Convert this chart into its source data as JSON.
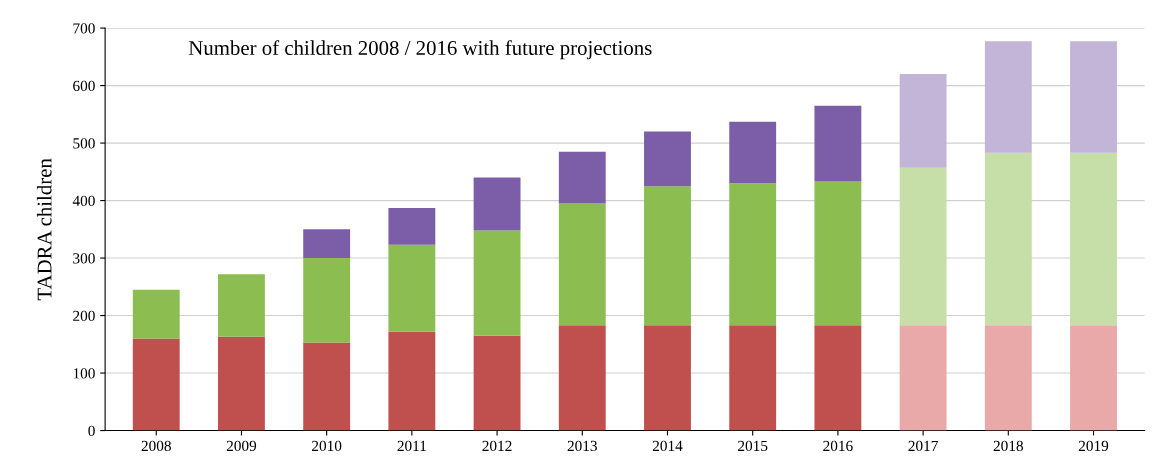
{
  "chart_data": {
    "type": "bar",
    "title": "Number of children 2008 / 2016 with future projections",
    "ylabel": "TADRA children",
    "categories": [
      "2008",
      "2009",
      "2010",
      "2011",
      "2012",
      "2013",
      "2014",
      "2015",
      "2016",
      "2017",
      "2018",
      "2019"
    ],
    "stacked": true,
    "series": [
      {
        "colors": [
          "#c0504d",
          "#c0504d",
          "#c0504d",
          "#c0504d",
          "#c0504d",
          "#c0504d",
          "#c0504d",
          "#c0504d",
          "#c0504d",
          "#e8a9a8",
          "#e8a9a8",
          "#e8a9a8"
        ],
        "values": [
          160,
          163,
          153,
          172,
          165,
          183,
          183,
          183,
          183,
          183,
          183,
          183
        ]
      },
      {
        "colors": [
          "#8cbd50",
          "#8cbd50",
          "#8cbd50",
          "#8cbd50",
          "#8cbd50",
          "#8cbd50",
          "#8cbd50",
          "#8cbd50",
          "#8cbd50",
          "#c6dea8",
          "#c6dea8",
          "#c6dea8"
        ],
        "values": [
          85,
          109,
          147,
          151,
          183,
          212,
          242,
          247,
          250,
          274,
          300,
          300
        ]
      },
      {
        "colors": [
          "#7b5ea7",
          "#7b5ea7",
          "#7b5ea7",
          "#7b5ea7",
          "#7b5ea7",
          "#7b5ea7",
          "#7b5ea7",
          "#7b5ea7",
          "#7b5ea7",
          "#c2b5d8",
          "#c2b5d8",
          "#c2b5d8"
        ],
        "values": [
          null,
          null,
          50,
          64,
          92,
          90,
          95,
          107,
          132,
          163,
          194,
          194
        ]
      }
    ],
    "ylim": [
      0,
      700
    ],
    "yticks": [
      0,
      100,
      200,
      300,
      400,
      500,
      600,
      700
    ],
    "grid": "y",
    "legend": false
  }
}
